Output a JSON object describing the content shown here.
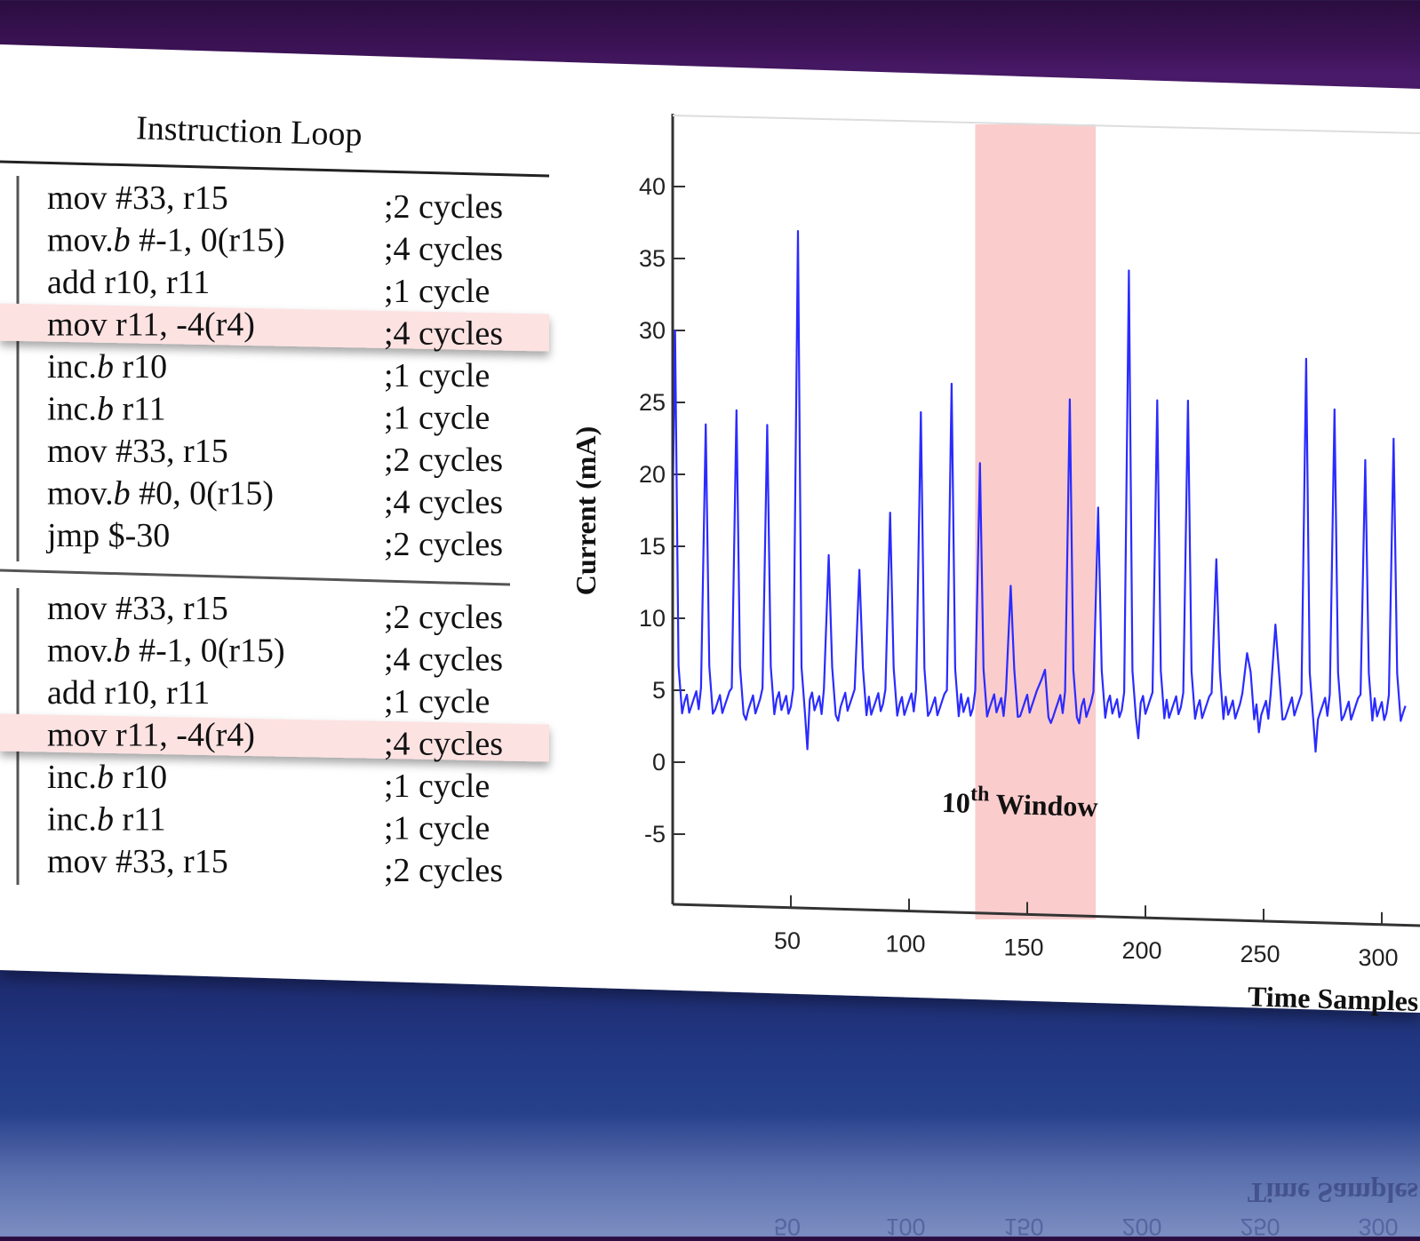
{
  "table": {
    "title": "Instruction Loop",
    "group1": [
      {
        "instr": "mov #33, r15",
        "cycles": ";2 cycles"
      },
      {
        "instr": "mov.b #-1, 0(r15)",
        "cycles": ";4 cycles"
      },
      {
        "instr": "add r10, r11",
        "cycles": ";1 cycle"
      },
      {
        "instr": "mov r11, -4(r4)",
        "cycles": ";4 cycles",
        "highlight": true
      },
      {
        "instr": "inc.b r10",
        "cycles": ";1 cycle"
      },
      {
        "instr": "inc.b r11",
        "cycles": ";1 cycle"
      },
      {
        "instr": "mov #33, r15",
        "cycles": ";2 cycles"
      },
      {
        "instr": "mov.b #0, 0(r15)",
        "cycles": ";4 cycles"
      },
      {
        "instr": "jmp $-30",
        "cycles": ";2 cycles"
      }
    ],
    "group2": [
      {
        "instr": "mov #33, r15",
        "cycles": ";2 cycles"
      },
      {
        "instr": "mov.b #-1, 0(r15)",
        "cycles": ";4 cycles"
      },
      {
        "instr": "add r10, r11",
        "cycles": ";1 cycle"
      },
      {
        "instr": "mov r11, -4(r4)",
        "cycles": ";4 cycles",
        "highlight": true
      },
      {
        "instr": "inc.b r10",
        "cycles": ";1 cycle"
      },
      {
        "instr": "inc.b r11",
        "cycles": ";1 cycle"
      },
      {
        "instr": "mov #33, r15",
        "cycles": ";2 cycles"
      }
    ]
  },
  "chart_data": {
    "type": "line",
    "title": "",
    "xlabel": "Time Samples",
    "ylabel": "Current (mA)",
    "xlim": [
      0,
      310
    ],
    "ylim": [
      -10,
      45
    ],
    "xticks": [
      50,
      100,
      150,
      200,
      250,
      300
    ],
    "yticks": [
      -5,
      0,
      5,
      10,
      15,
      20,
      25,
      30,
      35,
      40
    ],
    "highlight_window": {
      "x0": 128,
      "x1": 179,
      "label_base": "10",
      "label_sup": "th",
      "label_rest": " Window"
    },
    "series": [
      {
        "name": "current",
        "color": "#2b2bff",
        "peaks": [
          [
            1,
            30
          ],
          [
            14,
            23.5
          ],
          [
            27,
            24.5
          ],
          [
            40,
            23.5
          ],
          [
            53,
            37
          ],
          [
            66,
            14.5
          ],
          [
            79,
            13.5
          ],
          [
            92,
            17.5
          ],
          [
            105,
            24.5
          ],
          [
            118,
            26.5
          ],
          [
            130,
            21
          ],
          [
            143,
            12.5
          ],
          [
            156,
            6
          ],
          [
            168,
            25.5
          ],
          [
            180,
            18
          ],
          [
            193,
            34.5
          ],
          [
            205,
            25.5
          ],
          [
            218,
            25.5
          ],
          [
            230,
            14.5
          ],
          [
            243,
            8
          ],
          [
            255,
            10
          ],
          [
            268,
            28.5
          ],
          [
            280,
            25
          ],
          [
            293,
            21.5
          ],
          [
            305,
            23
          ]
        ],
        "baseline": 4.2,
        "dips": [
          [
            3,
            3
          ],
          [
            31,
            3
          ],
          [
            57,
            1
          ],
          [
            70,
            3
          ],
          [
            95,
            3.5
          ],
          [
            121,
            3
          ],
          [
            160,
            3
          ],
          [
            172,
            3
          ],
          [
            197,
            2
          ],
          [
            221,
            3
          ],
          [
            248,
            2.5
          ],
          [
            272,
            1.2
          ],
          [
            296,
            3.5
          ]
        ]
      }
    ]
  }
}
